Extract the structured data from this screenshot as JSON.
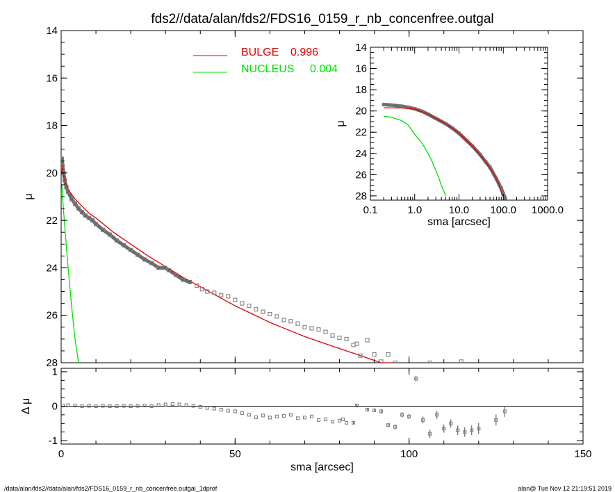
{
  "title": "fds2//data/alan/fds2/FDS16_0159_r_nb_concenfree.outgal",
  "footer_left": "/data/alan/fds2//data/alan/fds2/FDS16_0159_r_nb_concenfree.outgal_1dprof",
  "footer_right": "alan@  Tue Nov 12 21:19:51 2019",
  "colors": {
    "data": "#7f7f7f",
    "bulge": "#e00000",
    "nucleus": "#00e000",
    "axis": "#000000"
  },
  "chart_data": [
    {
      "id": "main",
      "type": "scatter",
      "xlabel": "",
      "ylabel": "μ",
      "xlim": [
        0,
        150
      ],
      "ylim": [
        28,
        14
      ],
      "y_inverted": true,
      "xticks": [
        0,
        50,
        100,
        150
      ],
      "yticks": [
        14,
        16,
        18,
        20,
        22,
        24,
        26,
        28
      ],
      "ytick_labels": [
        "14",
        "16",
        "18",
        "20",
        "22",
        "24",
        "26",
        "28"
      ],
      "legend": [
        {
          "name": "BULGE",
          "value": "0.996",
          "color": "#e00000"
        },
        {
          "name": "NUCLEUS",
          "value": "0.004",
          "color": "#00e000"
        }
      ],
      "legend_placement": "top-center",
      "series": [
        {
          "name": "BULGE",
          "kind": "line",
          "color": "#e00000",
          "x": [
            0.2,
            1,
            2,
            4,
            6,
            8,
            10,
            15,
            20,
            25,
            30,
            35,
            40,
            45,
            50,
            55,
            60,
            65,
            70,
            75,
            80,
            85,
            90,
            92,
            95
          ],
          "y": [
            19.7,
            20.3,
            20.7,
            21.1,
            21.4,
            21.7,
            21.9,
            22.5,
            23.0,
            23.5,
            23.95,
            24.4,
            24.8,
            25.2,
            25.6,
            25.95,
            26.3,
            26.6,
            26.9,
            27.15,
            27.4,
            27.65,
            27.9,
            28.0,
            28.0
          ]
        },
        {
          "name": "NUCLEUS",
          "kind": "line",
          "color": "#00e000",
          "x": [
            0.2,
            0.5,
            1,
            1.5,
            2,
            2.5,
            3,
            3.5,
            4,
            4.5,
            5
          ],
          "y": [
            20.5,
            21.2,
            22.2,
            23.1,
            24.0,
            24.8,
            25.6,
            26.3,
            27.0,
            27.5,
            28.0
          ]
        },
        {
          "name": "data",
          "kind": "points",
          "color": "#7f7f7f",
          "x": [
            0.2,
            0.4,
            0.7,
            1,
            1.5,
            2,
            3,
            4,
            5,
            6,
            7,
            8,
            9,
            10,
            12,
            14,
            16,
            18,
            20,
            22,
            24,
            26,
            28,
            29.8,
            31,
            33,
            35,
            37,
            39,
            40.5,
            42,
            44,
            46,
            48,
            50,
            52,
            54,
            56,
            58,
            60,
            62,
            64,
            66,
            68,
            70,
            72,
            74,
            76,
            78,
            80,
            82,
            84,
            85,
            86,
            88,
            90,
            92,
            94,
            96,
            106,
            115
          ],
          "y": [
            19.4,
            19.7,
            20.0,
            20.3,
            20.6,
            20.8,
            21.1,
            21.3,
            21.5,
            21.65,
            21.8,
            21.9,
            22.0,
            22.15,
            22.4,
            22.6,
            22.85,
            23.05,
            23.25,
            23.45,
            23.65,
            23.8,
            24.0,
            24.0,
            24.1,
            24.3,
            24.5,
            24.6,
            24.75,
            24.9,
            25.0,
            25.05,
            25.15,
            25.2,
            25.35,
            25.5,
            25.6,
            25.75,
            25.85,
            25.95,
            26.05,
            26.2,
            26.25,
            26.35,
            26.5,
            26.55,
            26.6,
            26.7,
            26.85,
            26.95,
            27.0,
            27.25,
            27.2,
            27.7,
            27.05,
            27.65,
            27.95,
            27.65,
            28.0,
            28.0,
            27.95
          ]
        }
      ]
    },
    {
      "id": "residual",
      "type": "scatter",
      "xlabel": "sma [arcsec]",
      "ylabel": "Δ μ",
      "xlim": [
        0,
        150
      ],
      "ylim": [
        -1.1,
        1.1
      ],
      "xticks": [
        0,
        50,
        100,
        150
      ],
      "yticks": [
        -1,
        0,
        1
      ],
      "xtick_labels": [
        "0",
        "50",
        "100",
        "150"
      ],
      "ytick_labels": [
        "-1",
        "0",
        "1"
      ],
      "series": [
        {
          "name": "residuals",
          "kind": "points_errorbars",
          "color": "#7f7f7f",
          "x": [
            0.5,
            2,
            4,
            6,
            8,
            10,
            12,
            14,
            16,
            18,
            20,
            22,
            24,
            26,
            28,
            30,
            32,
            34,
            36,
            38,
            40,
            42,
            44,
            46,
            48,
            50,
            52,
            54,
            56,
            58,
            60,
            62,
            64,
            66,
            68,
            70,
            72,
            74,
            76,
            78,
            80,
            81,
            82,
            84,
            85,
            88,
            90,
            92,
            94,
            96,
            98,
            100,
            102,
            104,
            106,
            108,
            110,
            112,
            114,
            116,
            118,
            120,
            125,
            127.5
          ],
          "y": [
            0.02,
            0.03,
            0.02,
            0.0,
            0.01,
            0.0,
            0.01,
            0.0,
            0.0,
            0.01,
            0.0,
            0.01,
            0.02,
            0.0,
            0.03,
            0.05,
            0.06,
            0.05,
            0.03,
            0.01,
            -0.02,
            -0.05,
            -0.07,
            -0.1,
            -0.13,
            -0.15,
            -0.2,
            -0.25,
            -0.32,
            -0.27,
            -0.33,
            -0.3,
            -0.28,
            -0.25,
            -0.35,
            -0.33,
            -0.3,
            -0.4,
            -0.38,
            -0.45,
            -0.42,
            -0.38,
            -0.48,
            -0.48,
            0.02,
            -0.1,
            -0.12,
            -0.15,
            -0.55,
            -0.6,
            -0.25,
            -0.3,
            0.8,
            -0.4,
            -0.8,
            -0.25,
            -0.65,
            -0.5,
            -0.7,
            -0.75,
            -0.7,
            -0.65,
            -0.4,
            -0.15
          ],
          "err": [
            0.0,
            0.0,
            0.0,
            0.0,
            0.0,
            0.0,
            0.0,
            0.0,
            0.0,
            0.0,
            0.0,
            0.0,
            0.0,
            0.0,
            0.0,
            0.0,
            0.0,
            0.0,
            0.0,
            0.0,
            0.0,
            0.0,
            0.0,
            0.0,
            0.0,
            0.0,
            0.0,
            0.0,
            0.0,
            0.0,
            0.0,
            0.0,
            0.0,
            0.0,
            0.0,
            0.0,
            0.0,
            0.0,
            0.0,
            0.0,
            0.0,
            0.0,
            0.0,
            0.04,
            0.04,
            0.05,
            0.05,
            0.06,
            0.06,
            0.07,
            0.08,
            0.08,
            0.08,
            0.1,
            0.12,
            0.12,
            0.12,
            0.12,
            0.14,
            0.14,
            0.14,
            0.16,
            0.16,
            0.16
          ]
        }
      ]
    },
    {
      "id": "inset",
      "type": "scatter",
      "xlabel": "sma [arcsec]",
      "ylabel": "μ",
      "xscale": "log",
      "xlim": [
        0.1,
        1000
      ],
      "ylim": [
        28.4,
        14
      ],
      "y_inverted": true,
      "xticks": [
        0.1,
        1,
        10,
        100,
        1000
      ],
      "xtick_labels": [
        "0.1",
        "1.0",
        "10.0",
        "100.0",
        "1000.0"
      ],
      "yticks": [
        14,
        16,
        18,
        20,
        22,
        24,
        26,
        28
      ],
      "ytick_labels": [
        "14",
        "16",
        "18",
        "20",
        "22",
        "24",
        "26",
        "28"
      ],
      "series": [
        {
          "name": "data",
          "kind": "points",
          "color": "#7f7f7f",
          "x": [
            0.2,
            0.3,
            0.5,
            0.7,
            1,
            1.5,
            2,
            3,
            5,
            7,
            10,
            15,
            20,
            30,
            40,
            50,
            60,
            70,
            80,
            90,
            100,
            110
          ],
          "y": [
            19.4,
            19.45,
            19.55,
            19.65,
            19.8,
            20.05,
            20.3,
            20.7,
            21.2,
            21.6,
            22.1,
            22.8,
            23.3,
            24.1,
            24.8,
            25.3,
            25.9,
            26.4,
            26.9,
            27.3,
            27.8,
            28.2
          ]
        },
        {
          "name": "BULGE",
          "kind": "line",
          "color": "#e00000",
          "x": [
            0.2,
            0.5,
            1,
            2,
            3,
            5,
            10,
            20,
            40,
            60,
            80,
            95
          ],
          "y": [
            19.7,
            19.72,
            19.82,
            20.3,
            20.7,
            21.2,
            22.1,
            23.3,
            24.8,
            25.9,
            26.9,
            28.0
          ]
        },
        {
          "name": "NUCLEUS",
          "kind": "line",
          "color": "#00e000",
          "x": [
            0.2,
            0.3,
            0.5,
            0.7,
            1,
            1.5,
            2,
            2.5,
            3,
            3.5,
            4,
            4.5,
            5
          ],
          "y": [
            20.5,
            20.6,
            20.9,
            21.3,
            22.2,
            23.1,
            24.0,
            24.8,
            25.6,
            26.3,
            27.0,
            27.5,
            28.0
          ]
        }
      ]
    }
  ]
}
